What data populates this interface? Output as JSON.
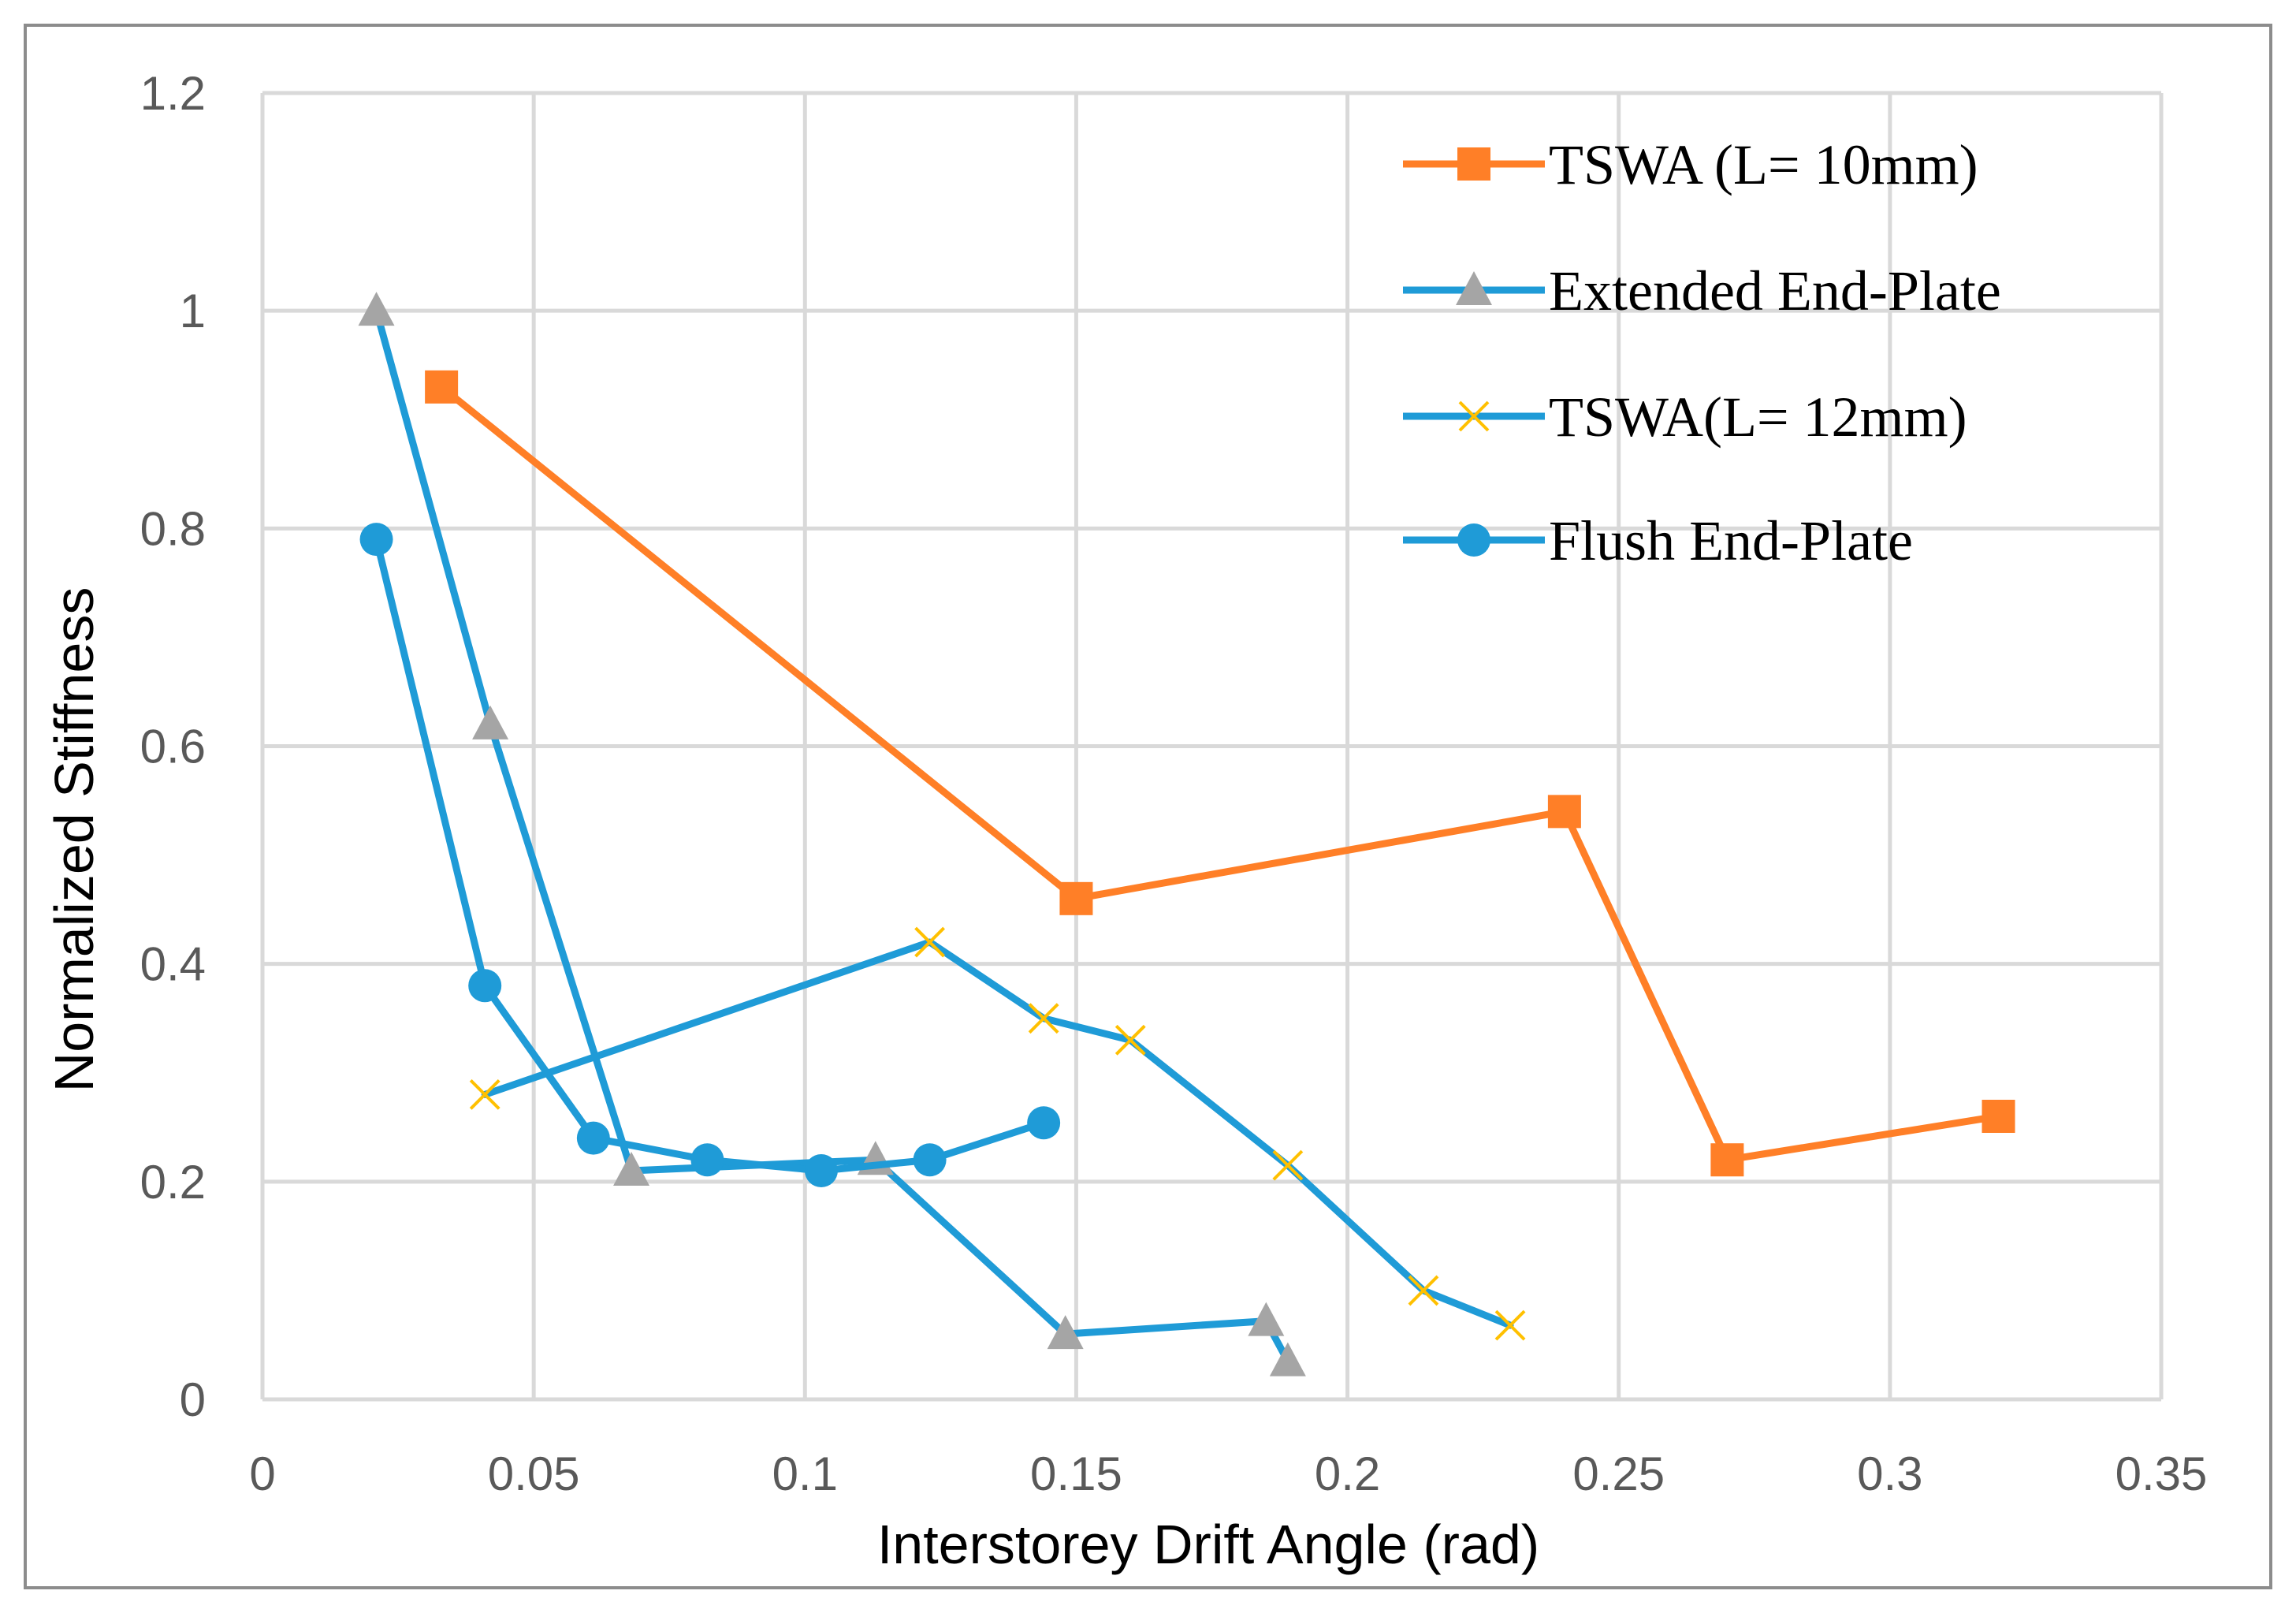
{
  "chart_data": {
    "type": "line",
    "title": "",
    "xlabel": "Interstorey Drift Angle (rad)",
    "ylabel": "Normalized Stiffness",
    "xlim": [
      0,
      0.35
    ],
    "ylim": [
      0,
      1.2
    ],
    "x_ticks": [
      "0",
      "0.05",
      "0.1",
      "0.15",
      "0.2",
      "0.25",
      "0.3",
      "0.35"
    ],
    "y_ticks": [
      "0",
      "0.2",
      "0.4",
      "0.6",
      "0.8",
      "1",
      "1.2"
    ],
    "x_tick_values": [
      0,
      0.05,
      0.1,
      0.15,
      0.2,
      0.25,
      0.3,
      0.35
    ],
    "y_tick_values": [
      0,
      0.2,
      0.4,
      0.6,
      0.8,
      1.0,
      1.2
    ],
    "grid": true,
    "legend_position": "top-right",
    "series": [
      {
        "name": "TSWA (L= 10mm)",
        "line_color": "#ff7f27",
        "marker": "square",
        "marker_color": "#ff7f27",
        "points": [
          [
            0.033,
            0.93
          ],
          [
            0.15,
            0.46
          ],
          [
            0.24,
            0.54
          ],
          [
            0.27,
            0.22
          ],
          [
            0.32,
            0.26
          ]
        ]
      },
      {
        "name": "Extended End-Plate",
        "line_color": "#1f9bd7",
        "marker": "triangle",
        "marker_color": "#a5a5a5",
        "points": [
          [
            0.021,
            1.0
          ],
          [
            0.042,
            0.62
          ],
          [
            0.068,
            0.21
          ],
          [
            0.113,
            0.22
          ],
          [
            0.148,
            0.06
          ],
          [
            0.185,
            0.072
          ],
          [
            0.189,
            0.035
          ]
        ]
      },
      {
        "name": "TSWA(L= 12mm)",
        "line_color": "#1f9bd7",
        "marker": "x",
        "marker_color": "#ffc000",
        "points": [
          [
            0.041,
            0.28
          ],
          [
            0.123,
            0.42
          ],
          [
            0.144,
            0.35
          ],
          [
            0.16,
            0.33
          ],
          [
            0.189,
            0.215
          ],
          [
            0.214,
            0.1
          ],
          [
            0.23,
            0.068
          ]
        ]
      },
      {
        "name": "Flush End-Plate",
        "line_color": "#1f9bd7",
        "marker": "circle",
        "marker_color": "#1f9bd7",
        "points": [
          [
            0.021,
            0.79
          ],
          [
            0.041,
            0.38
          ],
          [
            0.061,
            0.24
          ],
          [
            0.082,
            0.22
          ],
          [
            0.103,
            0.21
          ],
          [
            0.123,
            0.22
          ],
          [
            0.144,
            0.254
          ]
        ]
      }
    ]
  }
}
